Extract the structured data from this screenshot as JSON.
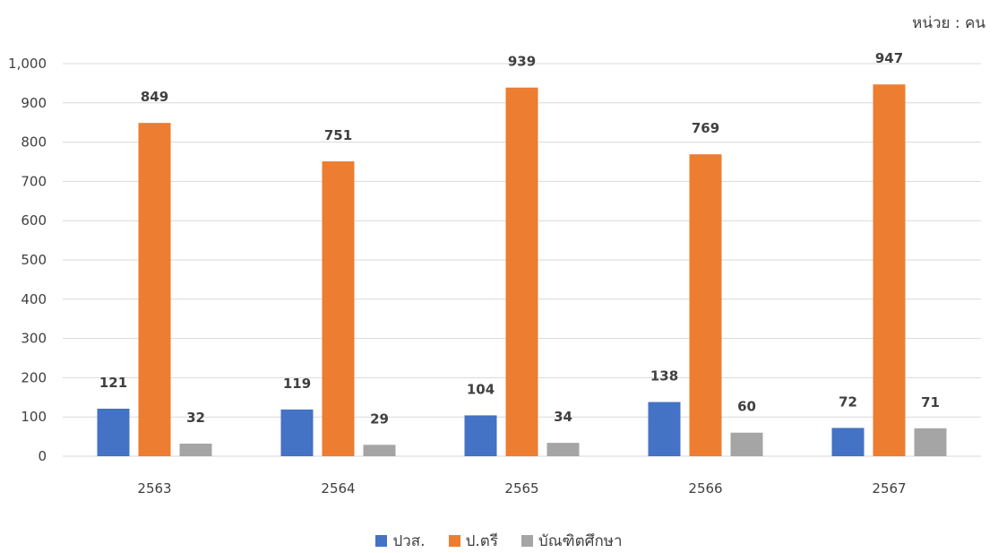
{
  "unit_label": "หน่วย : คน",
  "chart_data": {
    "type": "bar",
    "categories": [
      "2563",
      "2564",
      "2565",
      "2566",
      "2567"
    ],
    "series": [
      {
        "name": "ปวส.",
        "color": "#4472C4",
        "values": [
          121,
          119,
          104,
          138,
          72
        ]
      },
      {
        "name": "ป.ตรี",
        "color": "#ED7D31",
        "values": [
          849,
          751,
          939,
          769,
          947
        ]
      },
      {
        "name": "บัณฑิตศึกษา",
        "color": "#A5A5A5",
        "values": [
          32,
          29,
          34,
          60,
          71
        ]
      }
    ],
    "yticks": [
      "0",
      "100",
      "200",
      "300",
      "400",
      "500",
      "600",
      "700",
      "800",
      "900",
      "1,000"
    ],
    "ylim": [
      0,
      1000
    ],
    "grid": true,
    "legend_position": "bottom"
  }
}
